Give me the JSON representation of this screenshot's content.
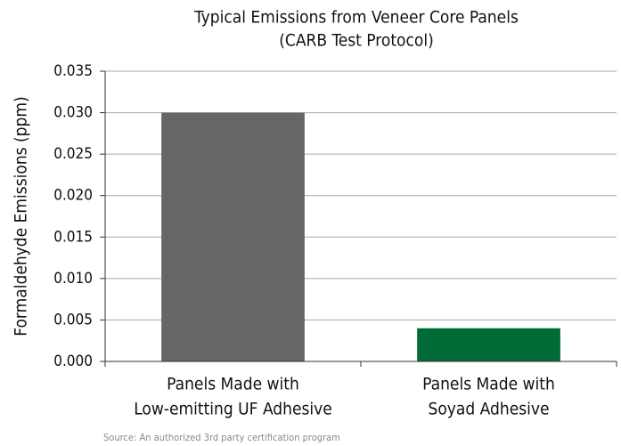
{
  "chart_data": {
    "type": "bar",
    "title": [
      "Typical Emissions from Veneer Core Panels",
      "(CARB Test Protocol)"
    ],
    "y_label": "Formaldehyde Emissions (ppm)",
    "categories": [
      [
        "Panels Made with",
        "Low-emitting UF Adhesive"
      ],
      [
        "Panels Made with",
        "Soyad Adhesive"
      ]
    ],
    "values": [
      0.03,
      0.004
    ],
    "colors": [
      "#666666",
      "#006b36"
    ],
    "ylim": [
      0,
      0.035
    ],
    "yticks": [
      {
        "value": 0,
        "label": "0.000"
      },
      {
        "value": 0.005,
        "label": "0.005"
      },
      {
        "value": 0.01,
        "label": "0.010"
      },
      {
        "value": 0.015,
        "label": "0.015"
      },
      {
        "value": 0.02,
        "label": "0.020"
      },
      {
        "value": 0.025,
        "label": "0.025"
      },
      {
        "value": 0.03,
        "label": "0.030"
      },
      {
        "value": 0.035,
        "label": "0.035"
      }
    ],
    "grid": true,
    "source": "Source: An authorized 3rd party certification program"
  }
}
